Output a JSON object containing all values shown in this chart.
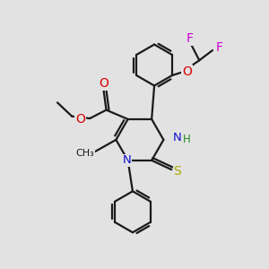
{
  "bg_color": "#e2e2e2",
  "bond_color": "#1a1a1a",
  "bond_width": 1.6,
  "N_color": "#1010cc",
  "O_color": "#dd0000",
  "S_color": "#aaaa00",
  "F_color": "#cc00cc",
  "font_size": 8.5,
  "fig_size": [
    3.0,
    3.0
  ],
  "dpi": 100,
  "xlim": [
    0,
    10
  ],
  "ylim": [
    0,
    10
  ]
}
